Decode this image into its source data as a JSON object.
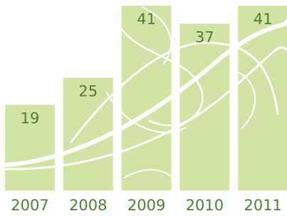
{
  "chart_data": {
    "type": "bar",
    "categories": [
      "2007",
      "2008",
      "2009",
      "2010",
      "2011"
    ],
    "values": [
      19,
      25,
      41,
      37,
      41
    ],
    "color": "#d1e3a5"
  }
}
